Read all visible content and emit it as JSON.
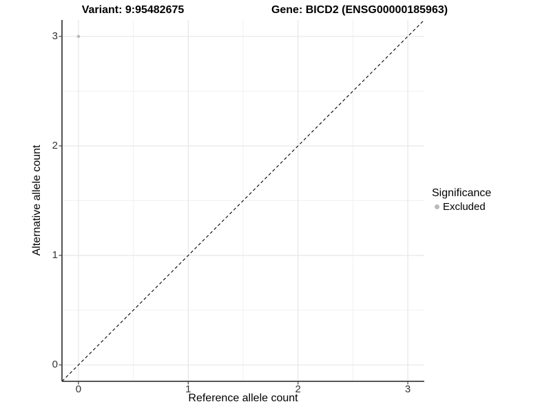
{
  "chart_data": {
    "type": "scatter",
    "title_left": "Variant: 9:95482675",
    "title_right": "Gene: BICD2 (ENSG00000185963)",
    "xlabel": "Reference allele count",
    "ylabel": "Alternative allele count",
    "xlim": [
      -0.15,
      3.15
    ],
    "ylim": [
      -0.15,
      3.15
    ],
    "x_ticks": [
      0,
      1,
      2,
      3
    ],
    "y_ticks": [
      0,
      1,
      2,
      3
    ],
    "grid": {
      "major": true,
      "minor": true,
      "minor_at_midpoints": true
    },
    "identity_line": {
      "style": "dashed",
      "from": [
        -0.15,
        -0.15
      ],
      "to": [
        3.15,
        3.15
      ]
    },
    "points": [
      {
        "x": 0,
        "y": 3,
        "series": "Excluded"
      }
    ],
    "legend": {
      "title": "Significance",
      "position": "right",
      "items": [
        {
          "label": "Excluded",
          "color": "#b9b9b9"
        }
      ]
    },
    "colors": {
      "point": "#b9b9b9",
      "grid_major": "#e4e4e4",
      "grid_minor": "#f0f0f0",
      "axis": "#3f3f3f",
      "diagonal": "#000000",
      "tick_label": "#333333",
      "title": "#000000"
    }
  }
}
